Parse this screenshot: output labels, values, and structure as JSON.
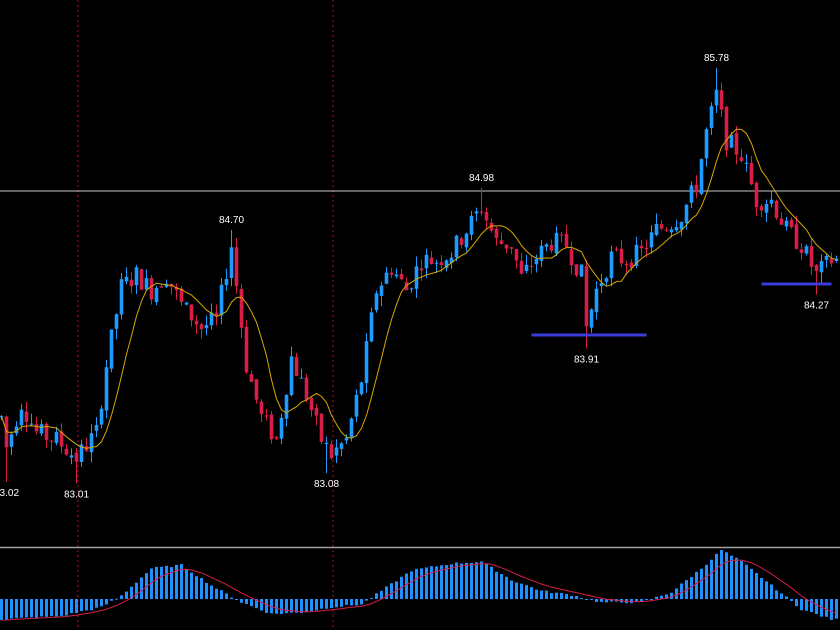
{
  "chart_data": [
    {
      "type": "candlestick",
      "ylim": [
        82.7,
        86.1
      ],
      "grid": false,
      "colors": {
        "up": "#1e9bff",
        "down": "#d81e46",
        "ma": "#d8a800",
        "background": "#000000"
      },
      "horizontal_level": 84.96,
      "peak_labels": [
        {
          "text": "83.02",
          "index": 1,
          "price": 83.02,
          "pos": "below"
        },
        {
          "text": "83.01",
          "index": 15,
          "price": 83.01,
          "pos": "below"
        },
        {
          "text": "84.70",
          "index": 46,
          "price": 84.7,
          "pos": "above"
        },
        {
          "text": "83.08",
          "index": 65,
          "price": 83.08,
          "pos": "below"
        },
        {
          "text": "84.98",
          "index": 96,
          "price": 84.98,
          "pos": "above"
        },
        {
          "text": "83.91",
          "index": 117,
          "price": 83.91,
          "pos": "below"
        },
        {
          "text": "85.78",
          "index": 143,
          "price": 85.78,
          "pos": "above"
        },
        {
          "text": "84.27",
          "index": 163,
          "price": 84.27,
          "pos": "below"
        }
      ],
      "support_lines": [
        {
          "price": 84.0,
          "from_index": 106,
          "to_index": 129
        },
        {
          "price": 84.34,
          "from_index": 152,
          "to_index": 166
        }
      ],
      "anchor_points": [
        [
          0,
          83.45
        ],
        [
          1,
          83.25
        ],
        [
          4,
          83.55
        ],
        [
          7,
          83.35
        ],
        [
          11,
          83.3
        ],
        [
          15,
          83.18
        ],
        [
          19,
          83.35
        ],
        [
          21,
          83.8
        ],
        [
          24,
          84.32
        ],
        [
          27,
          84.4
        ],
        [
          30,
          84.3
        ],
        [
          33,
          84.4
        ],
        [
          36,
          84.2
        ],
        [
          40,
          84.05
        ],
        [
          43,
          84.1
        ],
        [
          46,
          84.6
        ],
        [
          49,
          83.8
        ],
        [
          52,
          83.45
        ],
        [
          55,
          83.3
        ],
        [
          58,
          83.85
        ],
        [
          61,
          83.6
        ],
        [
          64,
          83.3
        ],
        [
          66,
          83.2
        ],
        [
          69,
          83.3
        ],
        [
          72,
          83.7
        ],
        [
          75,
          84.3
        ],
        [
          78,
          84.45
        ],
        [
          81,
          84.3
        ],
        [
          84,
          84.5
        ],
        [
          87,
          84.5
        ],
        [
          90,
          84.55
        ],
        [
          93,
          84.7
        ],
        [
          96,
          84.85
        ],
        [
          99,
          84.62
        ],
        [
          102,
          84.6
        ],
        [
          104,
          84.38
        ],
        [
          107,
          84.52
        ],
        [
          110,
          84.62
        ],
        [
          113,
          84.6
        ],
        [
          116,
          84.4
        ],
        [
          117,
          84.05
        ],
        [
          119,
          84.3
        ],
        [
          122,
          84.52
        ],
        [
          125,
          84.5
        ],
        [
          128,
          84.55
        ],
        [
          131,
          84.7
        ],
        [
          134,
          84.75
        ],
        [
          136,
          84.8
        ],
        [
          139,
          85.0
        ],
        [
          141,
          85.35
        ],
        [
          143,
          85.6
        ],
        [
          145,
          85.3
        ],
        [
          148,
          85.2
        ],
        [
          151,
          84.9
        ],
        [
          154,
          84.9
        ],
        [
          157,
          84.7
        ],
        [
          160,
          84.6
        ],
        [
          163,
          84.4
        ],
        [
          166,
          84.5
        ]
      ]
    },
    {
      "type": "histogram",
      "indicator": "MACD",
      "colors": {
        "bar": "#1e90ff",
        "signal": "#d81e46",
        "separator": "#a0a0a0"
      },
      "anchor_values": [
        [
          0,
          -0.3
        ],
        [
          12,
          -0.25
        ],
        [
          20,
          -0.12
        ],
        [
          24,
          0.05
        ],
        [
          30,
          0.45
        ],
        [
          36,
          0.5
        ],
        [
          42,
          0.2
        ],
        [
          48,
          -0.05
        ],
        [
          54,
          -0.22
        ],
        [
          60,
          -0.2
        ],
        [
          66,
          -0.12
        ],
        [
          72,
          -0.08
        ],
        [
          76,
          0.12
        ],
        [
          82,
          0.42
        ],
        [
          90,
          0.52
        ],
        [
          96,
          0.55
        ],
        [
          102,
          0.28
        ],
        [
          108,
          0.12
        ],
        [
          114,
          0.06
        ],
        [
          120,
          -0.05
        ],
        [
          128,
          -0.05
        ],
        [
          134,
          0.1
        ],
        [
          140,
          0.45
        ],
        [
          144,
          0.72
        ],
        [
          148,
          0.55
        ],
        [
          154,
          0.2
        ],
        [
          160,
          -0.15
        ],
        [
          166,
          -0.3
        ]
      ]
    }
  ]
}
